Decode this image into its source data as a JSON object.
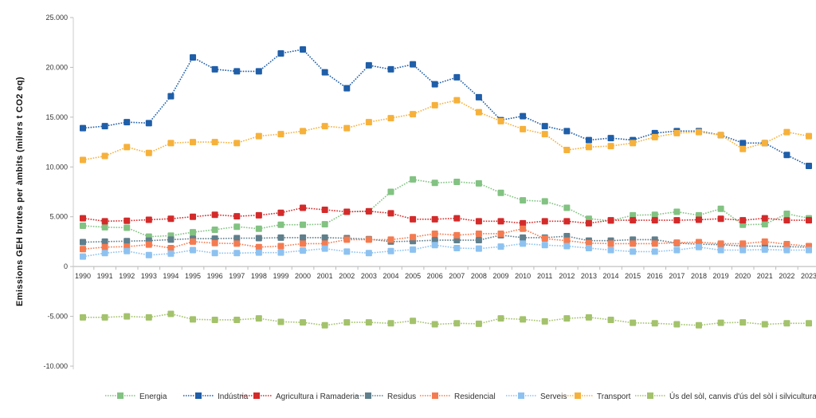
{
  "chart_data": {
    "type": "line",
    "title": "",
    "xlabel": "",
    "ylabel": "Emissions GEH brutes per àmbits (milers t CO2 eq)",
    "ylim": [
      -10000,
      25000
    ],
    "yticks": [
      25000,
      20000,
      15000,
      10000,
      5000,
      0,
      -5000,
      -10000
    ],
    "ytick_labels": [
      "25.000",
      "20.000",
      "15.000",
      "10.000",
      "5.000",
      "0",
      "-5.000",
      "-10.000"
    ],
    "grid": false,
    "legend_position": "bottom",
    "x": [
      "1990",
      "1991",
      "1992",
      "1993",
      "1994",
      "1995",
      "1996",
      "1997",
      "1998",
      "1999",
      "2000",
      "2001",
      "2002",
      "2003",
      "2004",
      "2005",
      "2006",
      "2007",
      "2008",
      "2009",
      "2010",
      "2011",
      "2012",
      "2013",
      "2014",
      "2015",
      "2016",
      "2017",
      "2018",
      "2019",
      "2020",
      "2021",
      "2022",
      "2023"
    ],
    "series": [
      {
        "name": "Energia",
        "color": "#82c282",
        "values": [
          4100,
          3950,
          3900,
          3000,
          3100,
          3450,
          3700,
          4000,
          3800,
          4200,
          4200,
          4250,
          5500,
          5550,
          7500,
          8750,
          8400,
          8500,
          8350,
          7400,
          6650,
          6550,
          5900,
          4800,
          4600,
          5150,
          5200,
          5500,
          5150,
          5800,
          4200,
          4250,
          5300,
          4850
        ]
      },
      {
        "name": "Indústria",
        "color": "#1f5ea8",
        "values": [
          13900,
          14100,
          14500,
          14400,
          17100,
          21000,
          19800,
          19600,
          19600,
          21400,
          21800,
          19500,
          17900,
          20200,
          19800,
          20300,
          18300,
          19000,
          17000,
          14700,
          15100,
          14100,
          13600,
          12700,
          12900,
          12700,
          13400,
          13600,
          13600,
          13200,
          12400,
          12400,
          11200,
          10100
        ]
      },
      {
        "name": "Agricultura i Ramaderia",
        "color": "#d42a2a",
        "values": [
          4850,
          4550,
          4600,
          4700,
          4800,
          5000,
          5200,
          5050,
          5150,
          5400,
          5900,
          5700,
          5500,
          5550,
          5350,
          4750,
          4750,
          4850,
          4550,
          4550,
          4350,
          4550,
          4550,
          4350,
          4650,
          4650,
          4650,
          4650,
          4700,
          4800,
          4650,
          4850,
          4650,
          4650
        ]
      },
      {
        "name": "Residus",
        "color": "#5f7f8c",
        "values": [
          2450,
          2500,
          2550,
          2600,
          2700,
          2800,
          2800,
          2850,
          2850,
          2900,
          2900,
          2900,
          2850,
          2750,
          2500,
          2550,
          2650,
          2650,
          2650,
          3150,
          2900,
          2900,
          3050,
          2600,
          2600,
          2700,
          2700,
          2350,
          2250,
          2200,
          2050,
          2050,
          2000,
          1950
        ]
      },
      {
        "name": "Residencial",
        "color": "#f47b50",
        "values": [
          1750,
          1950,
          2000,
          2200,
          1850,
          2500,
          2350,
          2300,
          1950,
          2050,
          2300,
          2300,
          2700,
          2700,
          2700,
          2950,
          3300,
          3150,
          3300,
          3300,
          3800,
          2800,
          2600,
          2350,
          2300,
          2300,
          2300,
          2400,
          2450,
          2300,
          2300,
          2500,
          2250,
          2050
        ]
      },
      {
        "name": "Serveis",
        "color": "#8dc2f0",
        "values": [
          1000,
          1350,
          1550,
          1150,
          1300,
          1650,
          1350,
          1350,
          1400,
          1400,
          1600,
          1800,
          1500,
          1350,
          1550,
          1700,
          2150,
          1850,
          1800,
          2000,
          2300,
          2150,
          2050,
          1850,
          1650,
          1500,
          1500,
          1650,
          1950,
          1650,
          1650,
          1700,
          1650,
          1650
        ]
      },
      {
        "name": "Transport",
        "color": "#f6b13b",
        "values": [
          10700,
          11100,
          12000,
          11400,
          12400,
          12500,
          12500,
          12400,
          13100,
          13300,
          13600,
          14100,
          13900,
          14500,
          14900,
          15300,
          16200,
          16700,
          15500,
          14600,
          13800,
          13300,
          11700,
          12000,
          12100,
          12400,
          13000,
          13400,
          13500,
          13200,
          11800,
          12400,
          13500,
          13100
        ]
      },
      {
        "name": "Ús del sòl, canvis d'ús del sòl i silvicultura",
        "color": "#a3c26b",
        "values": [
          -5100,
          -5100,
          -5000,
          -5100,
          -4750,
          -5300,
          -5350,
          -5350,
          -5200,
          -5550,
          -5600,
          -5900,
          -5600,
          -5600,
          -5700,
          -5450,
          -5800,
          -5700,
          -5750,
          -5200,
          -5300,
          -5500,
          -5200,
          -5100,
          -5350,
          -5650,
          -5700,
          -5800,
          -5900,
          -5650,
          -5600,
          -5800,
          -5700,
          -5700
        ]
      }
    ]
  }
}
